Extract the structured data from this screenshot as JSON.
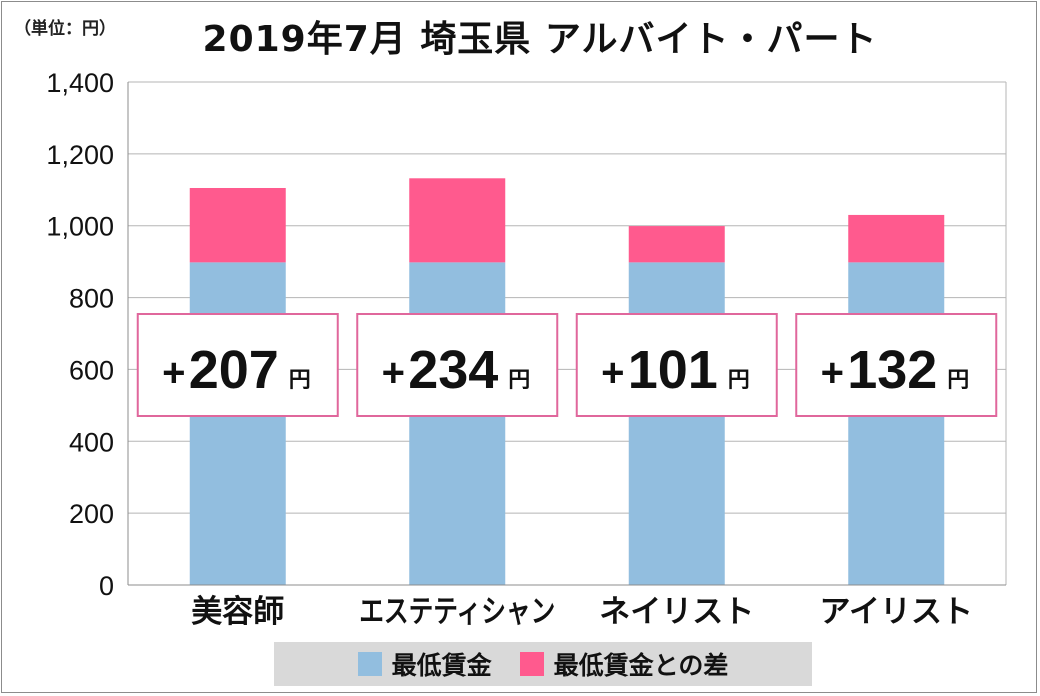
{
  "header": {
    "unit_label": "（単位：円）",
    "title": "2019年7月 埼玉県 アルバイト・パート"
  },
  "chart_data": {
    "type": "bar",
    "stacked": true,
    "categories": [
      "美容師",
      "エステティシャン",
      "ネイリスト",
      "アイリスト"
    ],
    "series": [
      {
        "name": "最低賃金",
        "color": "#92bedf",
        "values": [
          898,
          898,
          898,
          898
        ]
      },
      {
        "name": "最低賃金との差",
        "color": "#ff5a8e",
        "values": [
          207,
          234,
          101,
          132
        ]
      }
    ],
    "annotations": [
      {
        "plus": "+",
        "value": "207",
        "unit": "円"
      },
      {
        "plus": "+",
        "value": "234",
        "unit": "円"
      },
      {
        "plus": "+",
        "value": "101",
        "unit": "円"
      },
      {
        "plus": "+",
        "value": "132",
        "unit": "円"
      }
    ],
    "ylim": [
      0,
      1400
    ],
    "yticks": [
      0,
      200,
      400,
      600,
      800,
      1000,
      1200,
      1400
    ],
    "ytick_labels": [
      "0",
      "200",
      "400",
      "600",
      "800",
      "1,000",
      "1,200",
      "1,400"
    ],
    "grid": true,
    "legend_position": "bottom",
    "annotation_border_color": "#e0679c"
  }
}
